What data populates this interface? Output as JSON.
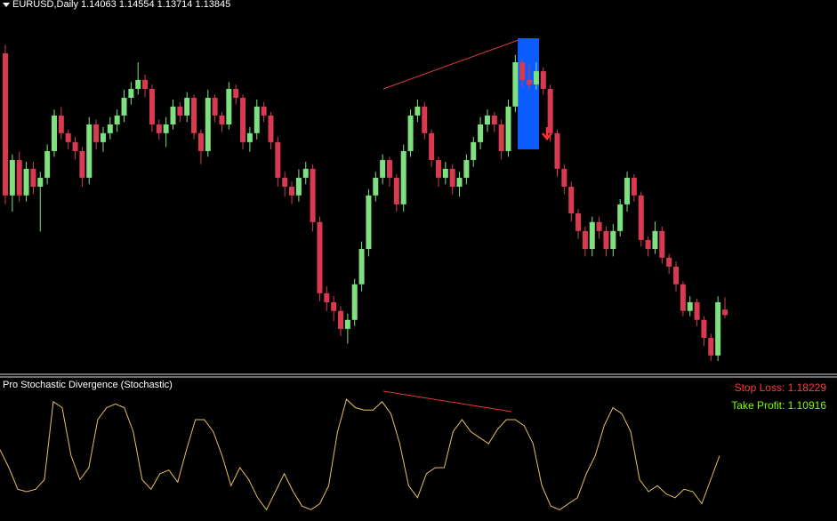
{
  "chart_data": [
    {
      "type": "candlestick",
      "title": "EURUSD,Daily 1.14063 1.14554 1.13714 1.13845",
      "up_color": "#7ee07e",
      "down_color": "#d93a4f",
      "ylim": [
        1.115,
        1.265
      ],
      "candles": [
        [
          1.2436,
          1.247,
          1.183,
          1.1865
        ],
        [
          1.1865,
          1.203,
          1.18,
          1.2007
        ],
        [
          1.2007,
          1.204,
          1.184,
          1.1865
        ],
        [
          1.1865,
          1.2,
          1.184,
          1.1972
        ],
        [
          1.1972,
          1.2,
          1.187,
          1.19
        ],
        [
          1.19,
          1.196,
          1.172,
          1.1936
        ],
        [
          1.1936,
          1.207,
          1.191,
          1.2043
        ],
        [
          1.2043,
          1.221,
          1.202,
          1.2186
        ],
        [
          1.2186,
          1.222,
          1.209,
          1.2115
        ],
        [
          1.2115,
          1.213,
          1.205,
          1.2079
        ],
        [
          1.2079,
          1.21,
          1.201,
          1.2043
        ],
        [
          1.2043,
          1.206,
          1.19,
          1.1936
        ],
        [
          1.1936,
          1.218,
          1.191,
          1.215
        ],
        [
          1.215,
          1.217,
          1.205,
          1.2079
        ],
        [
          1.2079,
          1.214,
          1.204,
          1.2115
        ],
        [
          1.2115,
          1.218,
          1.209,
          1.215
        ],
        [
          1.215,
          1.221,
          1.212,
          1.2186
        ],
        [
          1.2186,
          1.229,
          1.216,
          1.2257
        ],
        [
          1.2257,
          1.232,
          1.223,
          1.2293
        ],
        [
          1.2293,
          1.24,
          1.227,
          1.2329
        ],
        [
          1.2329,
          1.235,
          1.226,
          1.2293
        ],
        [
          1.2293,
          1.231,
          1.212,
          1.215
        ],
        [
          1.215,
          1.217,
          1.209,
          1.2115
        ],
        [
          1.2115,
          1.218,
          1.206,
          1.215
        ],
        [
          1.215,
          1.225,
          1.213,
          1.2222
        ],
        [
          1.2222,
          1.224,
          1.216,
          1.2186
        ],
        [
          1.2186,
          1.228,
          1.216,
          1.2257
        ],
        [
          1.2257,
          1.227,
          1.209,
          1.2115
        ],
        [
          1.2115,
          1.213,
          1.199,
          1.2043
        ],
        [
          1.2043,
          1.229,
          1.202,
          1.2257
        ],
        [
          1.2257,
          1.227,
          1.216,
          1.2186
        ],
        [
          1.2186,
          1.22,
          1.212,
          1.215
        ],
        [
          1.215,
          1.232,
          1.213,
          1.2293
        ],
        [
          1.2293,
          1.231,
          1.223,
          1.2257
        ],
        [
          1.2257,
          1.227,
          1.205,
          1.2079
        ],
        [
          1.2079,
          1.214,
          1.204,
          1.2115
        ],
        [
          1.2115,
          1.225,
          1.209,
          1.2222
        ],
        [
          1.2222,
          1.224,
          1.216,
          1.2186
        ],
        [
          1.2186,
          1.22,
          1.205,
          1.2079
        ],
        [
          1.2079,
          1.21,
          1.19,
          1.1936
        ],
        [
          1.1936,
          1.196,
          1.186,
          1.19
        ],
        [
          1.19,
          1.192,
          1.183,
          1.1865
        ],
        [
          1.1865,
          1.197,
          1.184,
          1.1936
        ],
        [
          1.1936,
          1.2,
          1.191,
          1.1972
        ],
        [
          1.1972,
          1.199,
          1.172,
          1.1758
        ],
        [
          1.1758,
          1.178,
          1.144,
          1.1472
        ],
        [
          1.1472,
          1.15,
          1.14,
          1.1436
        ],
        [
          1.1436,
          1.146,
          1.136,
          1.1401
        ],
        [
          1.1401,
          1.142,
          1.13,
          1.1329
        ],
        [
          1.1329,
          1.139,
          1.127,
          1.1365
        ],
        [
          1.1365,
          1.153,
          1.134,
          1.1508
        ],
        [
          1.1508,
          1.168,
          1.148,
          1.165
        ],
        [
          1.165,
          1.189,
          1.162,
          1.1865
        ],
        [
          1.1865,
          1.196,
          1.184,
          1.1936
        ],
        [
          1.1936,
          1.203,
          1.191,
          1.2007
        ],
        [
          1.2007,
          1.202,
          1.19,
          1.1936
        ],
        [
          1.1936,
          1.195,
          1.18,
          1.1829
        ],
        [
          1.1829,
          1.207,
          1.18,
          1.2043
        ],
        [
          1.2043,
          1.221,
          1.202,
          1.2186
        ],
        [
          1.2186,
          1.225,
          1.216,
          1.2222
        ],
        [
          1.2222,
          1.224,
          1.209,
          1.2115
        ],
        [
          1.2115,
          1.213,
          1.198,
          1.2007
        ],
        [
          1.2007,
          1.202,
          1.19,
          1.1936
        ],
        [
          1.1936,
          1.2,
          1.191,
          1.1972
        ],
        [
          1.1972,
          1.199,
          1.187,
          1.19
        ],
        [
          1.19,
          1.196,
          1.186,
          1.1936
        ],
        [
          1.1936,
          1.203,
          1.191,
          1.2007
        ],
        [
          1.2007,
          1.21,
          1.198,
          1.2079
        ],
        [
          1.2079,
          1.218,
          1.205,
          1.215
        ],
        [
          1.215,
          1.221,
          1.212,
          1.2186
        ],
        [
          1.2186,
          1.22,
          1.212,
          1.215
        ],
        [
          1.215,
          1.217,
          1.201,
          1.2043
        ],
        [
          1.2043,
          1.225,
          1.202,
          1.2222
        ],
        [
          1.2222,
          1.243,
          1.22,
          1.24
        ],
        [
          1.24,
          1.241,
          1.23,
          1.2329
        ],
        [
          1.2329,
          1.239,
          1.229,
          1.2311
        ],
        [
          1.2311,
          1.24,
          1.229,
          1.2364
        ],
        [
          1.2364,
          1.238,
          1.227,
          1.2293
        ],
        [
          1.2293,
          1.231,
          1.208,
          1.2115
        ],
        [
          1.2115,
          1.213,
          1.194,
          1.1972
        ],
        [
          1.1972,
          1.199,
          1.187,
          1.19
        ],
        [
          1.19,
          1.192,
          1.176,
          1.1793
        ],
        [
          1.1793,
          1.181,
          1.169,
          1.1722
        ],
        [
          1.1722,
          1.174,
          1.162,
          1.165
        ],
        [
          1.165,
          1.178,
          1.162,
          1.1758
        ],
        [
          1.1758,
          1.178,
          1.169,
          1.1722
        ],
        [
          1.1722,
          1.174,
          1.162,
          1.165
        ],
        [
          1.165,
          1.175,
          1.162,
          1.1722
        ],
        [
          1.1722,
          1.185,
          1.17,
          1.1829
        ],
        [
          1.1829,
          1.196,
          1.18,
          1.1936
        ],
        [
          1.1936,
          1.195,
          1.184,
          1.1865
        ],
        [
          1.1865,
          1.188,
          1.166,
          1.1686
        ],
        [
          1.1686,
          1.17,
          1.162,
          1.165
        ],
        [
          1.165,
          1.176,
          1.163,
          1.1722
        ],
        [
          1.1722,
          1.174,
          1.159,
          1.1615
        ],
        [
          1.1615,
          1.163,
          1.155,
          1.1579
        ],
        [
          1.1579,
          1.16,
          1.148,
          1.1508
        ],
        [
          1.1508,
          1.152,
          1.138,
          1.1401
        ],
        [
          1.1401,
          1.146,
          1.138,
          1.1436
        ],
        [
          1.1436,
          1.145,
          1.134,
          1.1365
        ],
        [
          1.1365,
          1.138,
          1.126,
          1.1293
        ],
        [
          1.1293,
          1.131,
          1.12,
          1.1222
        ],
        [
          1.1222,
          1.146,
          1.12,
          1.1436
        ],
        [
          1.14063,
          1.14554,
          1.13714,
          1.13845
        ]
      ]
    },
    {
      "type": "line",
      "title": "Pro Stochastic Divergence (Stochastic)",
      "color": "#e8c060",
      "ylim": [
        0,
        100
      ],
      "values": [
        55,
        40,
        22,
        20,
        22,
        30,
        95,
        90,
        50,
        30,
        40,
        80,
        90,
        93,
        90,
        70,
        30,
        22,
        35,
        38,
        28,
        55,
        80,
        80,
        70,
        50,
        25,
        40,
        30,
        15,
        5,
        20,
        35,
        20,
        8,
        5,
        10,
        25,
        70,
        97,
        90,
        88,
        88,
        95,
        85,
        60,
        25,
        15,
        35,
        40,
        40,
        70,
        80,
        70,
        65,
        60,
        72,
        80,
        80,
        75,
        60,
        25,
        8,
        5,
        10,
        15,
        35,
        50,
        75,
        90,
        85,
        70,
        30,
        20,
        25,
        18,
        15,
        22,
        20,
        10,
        30,
        50
      ],
      "annotations": [
        {
          "text": "Stop Loss: 1.18229",
          "color": "#ff3b3b"
        },
        {
          "text": "Take Profit: 1.10916",
          "color": "#7cfc00"
        }
      ]
    }
  ]
}
